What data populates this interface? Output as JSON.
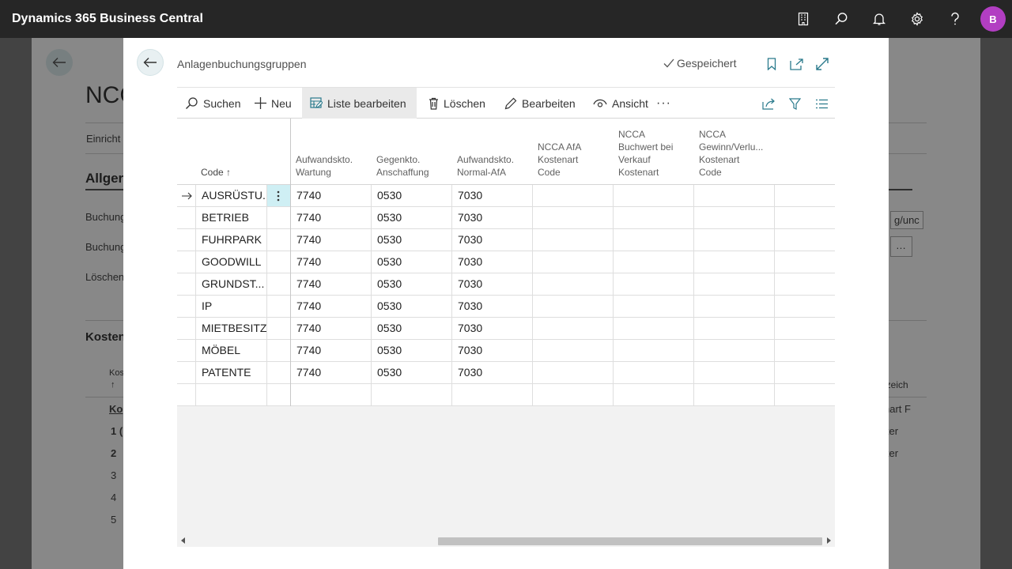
{
  "app": {
    "title": "Dynamics 365 Business Central",
    "avatar_letter": "B",
    "accent_color": "#b23ec2"
  },
  "background_page": {
    "title_fragment": "NCC",
    "tab_fragment": "Einricht",
    "section1": "Allger",
    "field1": "Buchung",
    "field2": "Buchung",
    "field3": "Löschen",
    "section2": "Kosten",
    "col_fragment": "Kos",
    "col_arrow": "↑",
    "row_fragment": "Ko",
    "row_values": [
      "1 (",
      "2",
      "3",
      "4",
      "5"
    ],
    "right_header": "ezeich",
    "right_values": [
      "nart F",
      "lter",
      "lter"
    ],
    "field_right_1": "g/unc",
    "field_right_2": "…"
  },
  "dialog": {
    "caption": "Anlagenbuchungsgruppen",
    "status": "Gespeichert",
    "actions": {
      "search": "Suchen",
      "new": "Neu",
      "edit_list": "Liste bearbeiten",
      "delete": "Löschen",
      "edit": "Bearbeiten",
      "view": "Ansicht",
      "more": "···"
    },
    "columns": [
      {
        "l1": "",
        "l2": "",
        "l3": "",
        "l4": "Code ↑"
      },
      {
        "l1": "",
        "l2": "",
        "l3": "Aufwandskto.",
        "l4": "Wartung"
      },
      {
        "l1": "",
        "l2": "",
        "l3": "Gegenkto.",
        "l4": "Anschaffung"
      },
      {
        "l1": "",
        "l2": "",
        "l3": "Aufwandskto.",
        "l4": "Normal-AfA"
      },
      {
        "l1": "",
        "l2": "NCCA AfA",
        "l3": "Kostenart",
        "l4": "Code"
      },
      {
        "l1": "NCCA",
        "l2": "Buchwert bei",
        "l3": "Verkauf",
        "l4": "Kostenart"
      },
      {
        "l1": "NCCA",
        "l2": "Gewinn/Verlu...",
        "l3": "Kostenart",
        "l4": "Code"
      }
    ],
    "rows": [
      {
        "code": "AUSRÜSTU...",
        "wartung": "7740",
        "anschaffung": "0530",
        "afa": "7030"
      },
      {
        "code": "BETRIEB",
        "wartung": "7740",
        "anschaffung": "0530",
        "afa": "7030"
      },
      {
        "code": "FUHRPARK",
        "wartung": "7740",
        "anschaffung": "0530",
        "afa": "7030"
      },
      {
        "code": "GOODWILL",
        "wartung": "7740",
        "anschaffung": "0530",
        "afa": "7030"
      },
      {
        "code": "GRUNDST...",
        "wartung": "7740",
        "anschaffung": "0530",
        "afa": "7030"
      },
      {
        "code": "IP",
        "wartung": "7740",
        "anschaffung": "0530",
        "afa": "7030"
      },
      {
        "code": "MIETBESITZ",
        "wartung": "7740",
        "anschaffung": "0530",
        "afa": "7030"
      },
      {
        "code": "MÖBEL",
        "wartung": "7740",
        "anschaffung": "0530",
        "afa": "7030"
      },
      {
        "code": "PATENTE",
        "wartung": "7740",
        "anschaffung": "0530",
        "afa": "7030"
      },
      {
        "code": "",
        "wartung": "",
        "anschaffung": "",
        "afa": ""
      }
    ],
    "selected_row_index": 0
  }
}
